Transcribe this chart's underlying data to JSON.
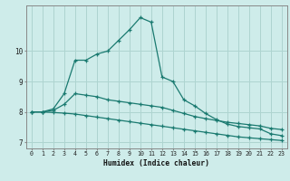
{
  "xlabel": "Humidex (Indice chaleur)",
  "background_color": "#ceecea",
  "grid_color": "#aed4d0",
  "line_color": "#1a7a70",
  "x_values": [
    0,
    1,
    2,
    3,
    4,
    5,
    6,
    7,
    8,
    9,
    10,
    11,
    12,
    13,
    14,
    15,
    16,
    17,
    18,
    19,
    20,
    21,
    22,
    23
  ],
  "line1": [
    8.0,
    8.0,
    8.1,
    8.6,
    9.7,
    9.7,
    9.9,
    10.0,
    10.35,
    10.7,
    11.1,
    10.95,
    9.15,
    9.0,
    8.4,
    8.2,
    7.95,
    7.75,
    7.6,
    7.52,
    7.48,
    7.44,
    7.28,
    7.22
  ],
  "line2": [
    8.0,
    8.0,
    8.05,
    8.25,
    8.6,
    8.55,
    8.5,
    8.4,
    8.35,
    8.3,
    8.25,
    8.2,
    8.15,
    8.05,
    7.95,
    7.85,
    7.78,
    7.72,
    7.66,
    7.62,
    7.58,
    7.54,
    7.46,
    7.42
  ],
  "line3": [
    8.0,
    8.0,
    7.98,
    7.96,
    7.93,
    7.88,
    7.83,
    7.78,
    7.73,
    7.68,
    7.63,
    7.58,
    7.53,
    7.48,
    7.43,
    7.38,
    7.33,
    7.28,
    7.23,
    7.18,
    7.15,
    7.12,
    7.09,
    7.06
  ],
  "ylim": [
    6.8,
    11.5
  ],
  "yticks": [
    7,
    8,
    9,
    10
  ],
  "xlim": [
    -0.5,
    23.5
  ]
}
